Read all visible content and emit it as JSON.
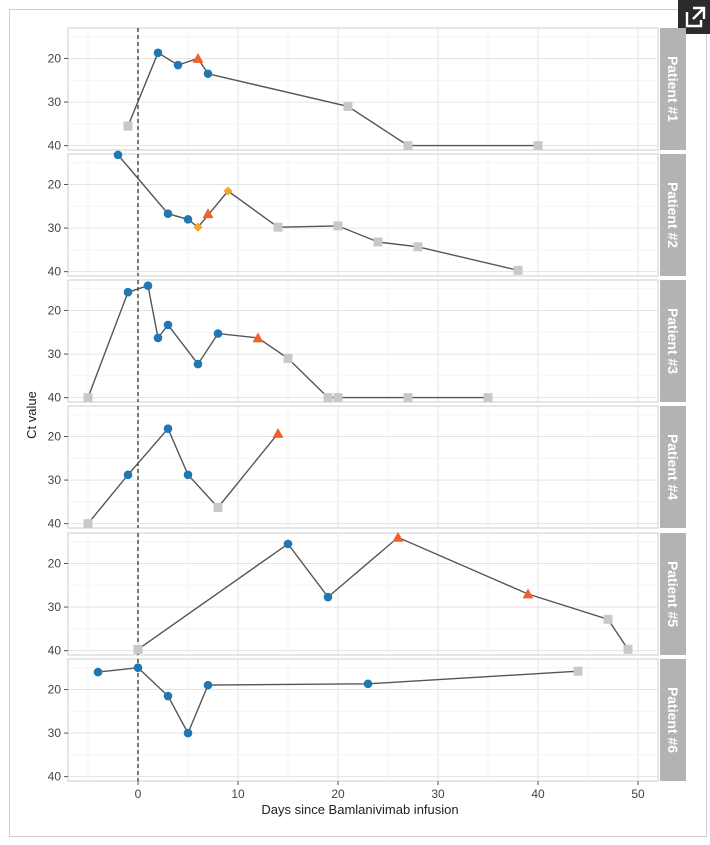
{
  "chart_data": {
    "type": "line",
    "title": "",
    "xlabel": "Days since Bamlanivimab infusion",
    "ylabel": "Ct value",
    "xlim": [
      -7,
      52
    ],
    "ylim": [
      13,
      41
    ],
    "x_ticks": [
      0,
      10,
      20,
      30,
      40,
      50
    ],
    "y_ticks": [
      20,
      30,
      40
    ],
    "reversed_y": true,
    "grid": true,
    "reference_line_x": 0,
    "colors": {
      "line": "#555555",
      "circle": "#1f77b4",
      "triangle": "#f0602a",
      "diamond": "#f5a623",
      "square": "#c8c8c8",
      "strip_bg": "#b3b3b3",
      "panel_bg": "#ffffff",
      "grid": "#e5e5e5"
    },
    "facets": [
      {
        "label": "Patient #1",
        "points": [
          {
            "x": -1,
            "y": 35.5,
            "shape": "square"
          },
          {
            "x": 2,
            "y": 18.7,
            "shape": "circle"
          },
          {
            "x": 4,
            "y": 21.5,
            "shape": "circle"
          },
          {
            "x": 6,
            "y": 20,
            "shape": "triangle"
          },
          {
            "x": 7,
            "y": 23.5,
            "shape": "circle"
          },
          {
            "x": 21,
            "y": 31,
            "shape": "square"
          },
          {
            "x": 27,
            "y": 40,
            "shape": "square"
          },
          {
            "x": 40,
            "y": 40,
            "shape": "square"
          }
        ],
        "line": [
          [
            -1,
            35.5
          ],
          [
            2,
            18.7
          ],
          [
            4,
            21.5
          ],
          [
            6,
            20
          ],
          [
            7,
            23.5
          ],
          [
            21,
            31
          ],
          [
            27,
            40
          ],
          [
            40,
            40
          ]
        ]
      },
      {
        "label": "Patient #2",
        "points": [
          {
            "x": -2,
            "y": 13.2,
            "shape": "circle"
          },
          {
            "x": 3,
            "y": 26.7,
            "shape": "circle"
          },
          {
            "x": 5,
            "y": 28,
            "shape": "circle"
          },
          {
            "x": 6,
            "y": 29.8,
            "shape": "diamond"
          },
          {
            "x": 7,
            "y": 26.7,
            "shape": "triangle"
          },
          {
            "x": 9,
            "y": 21.5,
            "shape": "diamond"
          },
          {
            "x": 14,
            "y": 29.8,
            "shape": "square"
          },
          {
            "x": 20,
            "y": 29.5,
            "shape": "square"
          },
          {
            "x": 24,
            "y": 33.2,
            "shape": "square"
          },
          {
            "x": 28,
            "y": 34.3,
            "shape": "square"
          },
          {
            "x": 38,
            "y": 39.7,
            "shape": "square"
          }
        ],
        "line": [
          [
            -2,
            13.2
          ],
          [
            3,
            26.7
          ],
          [
            5,
            28
          ],
          [
            6,
            29.8
          ],
          [
            9,
            21.5
          ],
          [
            14,
            29.8
          ],
          [
            20,
            29.5
          ],
          [
            24,
            33.2
          ],
          [
            28,
            34.3
          ],
          [
            38,
            39.7
          ]
        ]
      },
      {
        "label": "Patient #3",
        "points": [
          {
            "x": -5,
            "y": 40,
            "shape": "square"
          },
          {
            "x": -1,
            "y": 15.8,
            "shape": "circle"
          },
          {
            "x": 1,
            "y": 14.3,
            "shape": "circle"
          },
          {
            "x": 2,
            "y": 26.3,
            "shape": "circle"
          },
          {
            "x": 3,
            "y": 23.3,
            "shape": "circle"
          },
          {
            "x": 6,
            "y": 32.3,
            "shape": "circle"
          },
          {
            "x": 8,
            "y": 25.3,
            "shape": "circle"
          },
          {
            "x": 12,
            "y": 26.3,
            "shape": "triangle"
          },
          {
            "x": 15,
            "y": 31,
            "shape": "square"
          },
          {
            "x": 19,
            "y": 40,
            "shape": "square"
          },
          {
            "x": 20,
            "y": 40,
            "shape": "square"
          },
          {
            "x": 27,
            "y": 40,
            "shape": "square"
          },
          {
            "x": 35,
            "y": 40,
            "shape": "square"
          }
        ],
        "line": [
          [
            -5,
            40
          ],
          [
            -1,
            15.8
          ],
          [
            1,
            14.3
          ],
          [
            2,
            26.3
          ],
          [
            3,
            23.3
          ],
          [
            6,
            32.3
          ],
          [
            8,
            25.3
          ],
          [
            12,
            26.3
          ],
          [
            15,
            31
          ],
          [
            19,
            40
          ],
          [
            35,
            40
          ]
        ]
      },
      {
        "label": "Patient #4",
        "points": [
          {
            "x": -5,
            "y": 40,
            "shape": "square"
          },
          {
            "x": -1,
            "y": 28.8,
            "shape": "circle"
          },
          {
            "x": 3,
            "y": 18.2,
            "shape": "circle"
          },
          {
            "x": 5,
            "y": 28.8,
            "shape": "circle"
          },
          {
            "x": 8,
            "y": 36.3,
            "shape": "square"
          },
          {
            "x": 14,
            "y": 19.3,
            "shape": "triangle"
          }
        ],
        "line": [
          [
            -5,
            40
          ],
          [
            -1,
            28.8
          ],
          [
            3,
            18.2
          ],
          [
            5,
            28.8
          ],
          [
            8,
            36.3
          ],
          [
            14,
            19.3
          ]
        ]
      },
      {
        "label": "Patient #5",
        "points": [
          {
            "x": 0,
            "y": 39.7,
            "shape": "square"
          },
          {
            "x": 15,
            "y": 15.5,
            "shape": "circle"
          },
          {
            "x": 19,
            "y": 27.7,
            "shape": "circle"
          },
          {
            "x": 26,
            "y": 14,
            "shape": "triangle"
          },
          {
            "x": 39,
            "y": 27,
            "shape": "triangle"
          },
          {
            "x": 47,
            "y": 32.8,
            "shape": "square"
          },
          {
            "x": 49,
            "y": 39.7,
            "shape": "square"
          }
        ],
        "line": [
          [
            0,
            39.7
          ],
          [
            15,
            15.5
          ],
          [
            19,
            27.7
          ],
          [
            26,
            14
          ],
          [
            39,
            27
          ],
          [
            47,
            32.8
          ],
          [
            49,
            39.7
          ]
        ]
      },
      {
        "label": "Patient #6",
        "points": [
          {
            "x": -4,
            "y": 16,
            "shape": "circle"
          },
          {
            "x": 0,
            "y": 15,
            "shape": "circle"
          },
          {
            "x": 3,
            "y": 21.5,
            "shape": "circle"
          },
          {
            "x": 5,
            "y": 30,
            "shape": "circle"
          },
          {
            "x": 7,
            "y": 19,
            "shape": "circle"
          },
          {
            "x": 23,
            "y": 18.7,
            "shape": "circle"
          },
          {
            "x": 44,
            "y": 15.8,
            "shape": "square"
          }
        ],
        "line": [
          [
            -4,
            16
          ],
          [
            0,
            15
          ],
          [
            3,
            21.5
          ],
          [
            5,
            30
          ],
          [
            7,
            19
          ],
          [
            23,
            18.7
          ],
          [
            44,
            15.8
          ]
        ]
      }
    ]
  }
}
